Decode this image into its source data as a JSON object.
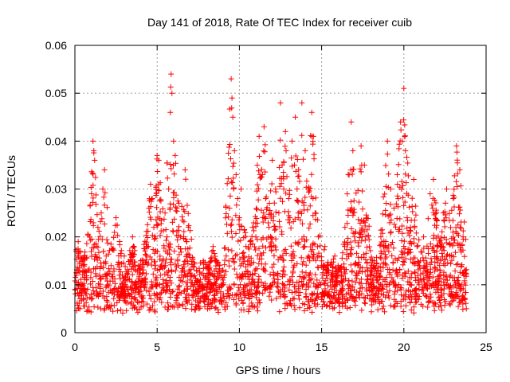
{
  "chart_data": {
    "type": "scatter",
    "title": "Day 141 of 2018, Rate Of TEC Index for receiver cuib",
    "xlabel": "GPS time / hours",
    "ylabel": "ROTI / TECUs",
    "xlim": [
      0,
      25
    ],
    "ylim": [
      0,
      0.06
    ],
    "x_ticks": [
      {
        "value": 0,
        "label": "0"
      },
      {
        "value": 5,
        "label": "5"
      },
      {
        "value": 10,
        "label": "10"
      },
      {
        "value": 15,
        "label": "15"
      },
      {
        "value": 20,
        "label": "20"
      },
      {
        "value": 25,
        "label": "25"
      }
    ],
    "y_ticks": [
      {
        "value": 0,
        "label": "0"
      },
      {
        "value": 0.01,
        "label": "0.01"
      },
      {
        "value": 0.02,
        "label": "0.02"
      },
      {
        "value": 0.03,
        "label": "0.03"
      },
      {
        "value": 0.04,
        "label": "0.04"
      },
      {
        "value": 0.05,
        "label": "0.05"
      },
      {
        "value": 0.06,
        "label": "0.06"
      }
    ],
    "grid": true,
    "marker": "plus",
    "color": "#ff0000",
    "series": [
      {
        "name": "ROTI",
        "points": [
          [
            0.1,
            0.012
          ],
          [
            0.2,
            0.019
          ],
          [
            0.3,
            0.005
          ],
          [
            0.4,
            0.014
          ],
          [
            0.5,
            0.009
          ],
          [
            0.6,
            0.016
          ],
          [
            0.7,
            0.011
          ],
          [
            0.8,
            0.013
          ],
          [
            0.9,
            0.02
          ],
          [
            1.0,
            0.007
          ],
          [
            1.1,
            0.04
          ],
          [
            1.15,
            0.038
          ],
          [
            1.2,
            0.036
          ],
          [
            1.3,
            0.018
          ],
          [
            1.4,
            0.022
          ],
          [
            1.5,
            0.012
          ],
          [
            1.6,
            0.025
          ],
          [
            1.7,
            0.03
          ],
          [
            1.8,
            0.034
          ],
          [
            1.9,
            0.016
          ],
          [
            2.0,
            0.01
          ],
          [
            2.2,
            0.014
          ],
          [
            2.4,
            0.008
          ],
          [
            2.5,
            0.024
          ],
          [
            2.7,
            0.012
          ],
          [
            2.9,
            0.009
          ],
          [
            3.0,
            0.016
          ],
          [
            3.2,
            0.011
          ],
          [
            3.4,
            0.006
          ],
          [
            3.5,
            0.02
          ],
          [
            3.7,
            0.013
          ],
          [
            3.9,
            0.009
          ],
          [
            4.0,
            0.015
          ],
          [
            4.2,
            0.011
          ],
          [
            4.4,
            0.018
          ],
          [
            4.5,
            0.026
          ],
          [
            4.6,
            0.031
          ],
          [
            4.7,
            0.028
          ],
          [
            4.8,
            0.022
          ],
          [
            4.9,
            0.014
          ],
          [
            5.0,
            0.037
          ],
          [
            5.1,
            0.036
          ],
          [
            5.2,
            0.012
          ],
          [
            5.4,
            0.009
          ],
          [
            5.5,
            0.014
          ],
          [
            5.6,
            0.02
          ],
          [
            5.7,
            0.03
          ],
          [
            5.8,
            0.046
          ],
          [
            5.85,
            0.054
          ],
          [
            5.9,
            0.05
          ],
          [
            6.0,
            0.04
          ],
          [
            6.1,
            0.037
          ],
          [
            6.2,
            0.026
          ],
          [
            6.3,
            0.018
          ],
          [
            6.5,
            0.012
          ],
          [
            6.7,
            0.034
          ],
          [
            6.8,
            0.019
          ],
          [
            7.0,
            0.011
          ],
          [
            7.2,
            0.008
          ],
          [
            7.4,
            0.013
          ],
          [
            7.6,
            0.01
          ],
          [
            7.8,
            0.015
          ],
          [
            8.0,
            0.009
          ],
          [
            8.2,
            0.012
          ],
          [
            8.4,
            0.018
          ],
          [
            8.6,
            0.011
          ],
          [
            8.8,
            0.014
          ],
          [
            9.0,
            0.01
          ],
          [
            9.2,
            0.016
          ],
          [
            9.4,
            0.026
          ],
          [
            9.5,
            0.053
          ],
          [
            9.55,
            0.049
          ],
          [
            9.6,
            0.045
          ],
          [
            9.7,
            0.038
          ],
          [
            9.8,
            0.033
          ],
          [
            9.9,
            0.028
          ],
          [
            10.0,
            0.024
          ],
          [
            10.1,
            0.03
          ],
          [
            10.2,
            0.012
          ],
          [
            10.4,
            0.018
          ],
          [
            10.6,
            0.015
          ],
          [
            10.8,
            0.022
          ],
          [
            11.0,
            0.02
          ],
          [
            11.2,
            0.041
          ],
          [
            11.4,
            0.033
          ],
          [
            11.5,
            0.043
          ],
          [
            11.6,
            0.028
          ],
          [
            11.8,
            0.022
          ],
          [
            12.0,
            0.036
          ],
          [
            12.2,
            0.03
          ],
          [
            12.4,
            0.025
          ],
          [
            12.5,
            0.048
          ],
          [
            12.6,
            0.035
          ],
          [
            12.8,
            0.042
          ],
          [
            13.0,
            0.028
          ],
          [
            13.2,
            0.04
          ],
          [
            13.4,
            0.045
          ],
          [
            13.6,
            0.034
          ],
          [
            13.8,
            0.048
          ],
          [
            14.0,
            0.038
          ],
          [
            14.2,
            0.03
          ],
          [
            14.4,
            0.046
          ],
          [
            14.5,
            0.041
          ],
          [
            14.6,
            0.025
          ],
          [
            14.8,
            0.02
          ],
          [
            15.0,
            0.015
          ],
          [
            15.2,
            0.018
          ],
          [
            15.4,
            0.013
          ],
          [
            15.6,
            0.011
          ],
          [
            15.8,
            0.016
          ],
          [
            16.0,
            0.014
          ],
          [
            16.2,
            0.012
          ],
          [
            16.4,
            0.018
          ],
          [
            16.6,
            0.01
          ],
          [
            16.8,
            0.044
          ],
          [
            16.9,
            0.038
          ],
          [
            17.0,
            0.02
          ],
          [
            17.2,
            0.014
          ],
          [
            17.4,
            0.039
          ],
          [
            17.6,
            0.035
          ],
          [
            17.8,
            0.012
          ],
          [
            18.0,
            0.01
          ],
          [
            18.2,
            0.015
          ],
          [
            18.4,
            0.011
          ],
          [
            18.6,
            0.02
          ],
          [
            18.8,
            0.017
          ],
          [
            19.0,
            0.04
          ],
          [
            19.2,
            0.03
          ],
          [
            19.4,
            0.026
          ],
          [
            19.6,
            0.033
          ],
          [
            19.8,
            0.044
          ],
          [
            19.9,
            0.04
          ],
          [
            20.0,
            0.051
          ],
          [
            20.1,
            0.038
          ],
          [
            20.2,
            0.024
          ],
          [
            20.4,
            0.022
          ],
          [
            20.6,
            0.032
          ],
          [
            20.8,
            0.018
          ],
          [
            21.0,
            0.015
          ],
          [
            21.2,
            0.02
          ],
          [
            21.4,
            0.013
          ],
          [
            21.6,
            0.029
          ],
          [
            21.8,
            0.032
          ],
          [
            22.0,
            0.017
          ],
          [
            22.2,
            0.013
          ],
          [
            22.4,
            0.025
          ],
          [
            22.6,
            0.03
          ],
          [
            22.8,
            0.016
          ],
          [
            23.0,
            0.028
          ],
          [
            23.2,
            0.039
          ],
          [
            23.4,
            0.034
          ],
          [
            23.6,
            0.02
          ],
          [
            23.7,
            0.013
          ],
          [
            23.8,
            0.005
          ]
        ]
      }
    ]
  }
}
